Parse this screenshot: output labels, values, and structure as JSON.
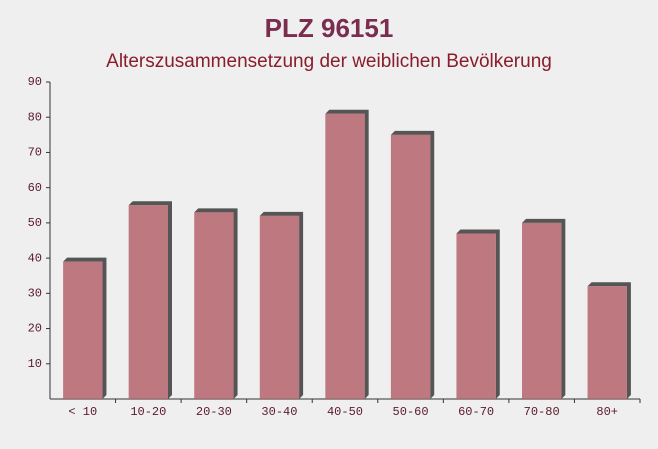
{
  "chart_data": {
    "type": "bar",
    "title": "PLZ 96151",
    "subtitle": "Alterszusammensetzung der weiblichen Bevölkerung",
    "categories": [
      "< 10",
      "10-20",
      "20-30",
      "30-40",
      "40-50",
      "50-60",
      "60-70",
      "70-80",
      "80+"
    ],
    "values": [
      39,
      55,
      53,
      52,
      81,
      75,
      47,
      50,
      32
    ],
    "color": "#b5636b",
    "ylim": [
      0,
      90
    ],
    "yticks": [
      10,
      20,
      30,
      40,
      50,
      60,
      70,
      80,
      90
    ],
    "grid": false
  }
}
